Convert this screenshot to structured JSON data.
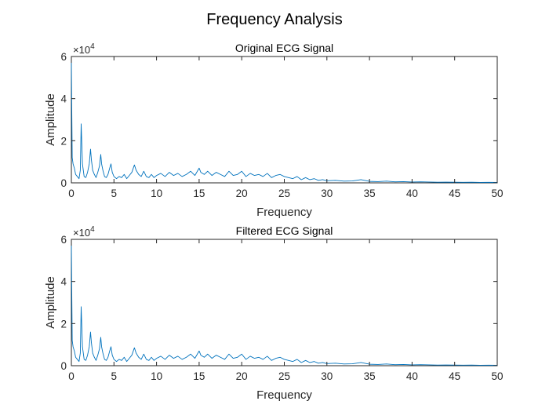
{
  "figure": {
    "title": "Frequency Analysis"
  },
  "colors": {
    "series": "#0072bd",
    "axis": "#262626",
    "background": "#ffffff"
  },
  "chart_data": [
    {
      "type": "line",
      "title": "Original ECG Signal",
      "xlabel": "Frequency",
      "ylabel": "Amplitude",
      "xlim": [
        0,
        50
      ],
      "ylim": [
        0,
        60000
      ],
      "y_multiplier": "×10^4",
      "xticks": [
        0,
        5,
        10,
        15,
        20,
        25,
        30,
        35,
        40,
        45,
        50
      ],
      "yticks": [
        0,
        20000,
        40000,
        60000
      ],
      "ytick_labels": [
        "0",
        "2",
        "4",
        "6"
      ],
      "grid": false,
      "series": [
        {
          "x": [
            0,
            0.05,
            0.1,
            0.2,
            0.35,
            0.5,
            0.7,
            0.9,
            1.05,
            1.15,
            1.3,
            1.5,
            1.7,
            1.9,
            2.1,
            2.25,
            2.35,
            2.5,
            2.7,
            2.9,
            3.1,
            3.3,
            3.45,
            3.55,
            3.7,
            3.9,
            4.1,
            4.3,
            4.5,
            4.65,
            4.8,
            5.0,
            5.3,
            5.6,
            5.9,
            6.2,
            6.5,
            6.8,
            7.1,
            7.4,
            7.6,
            7.9,
            8.2,
            8.5,
            8.8,
            9.1,
            9.4,
            9.7,
            10.0,
            10.5,
            11.0,
            11.5,
            12.0,
            12.5,
            13.0,
            13.5,
            14.0,
            14.5,
            15.0,
            15.2,
            15.6,
            16.0,
            16.5,
            17.0,
            17.5,
            18.0,
            18.5,
            19.0,
            19.5,
            20.0,
            20.5,
            21.0,
            21.5,
            22.0,
            22.5,
            23.0,
            23.5,
            24.0,
            24.5,
            25.0,
            25.5,
            26.0,
            26.5,
            27.0,
            27.5,
            28.0,
            28.5,
            29.0,
            29.5,
            30.0,
            31.0,
            32.0,
            33.0,
            34.0,
            35.0,
            36.0,
            37.0,
            38.0,
            39.0,
            40.0,
            41.0,
            42.0,
            43.0,
            44.0,
            45.0,
            46.0,
            47.0,
            48.0,
            49.0,
            50.0
          ],
          "y": [
            57000,
            34000,
            12000,
            9000,
            7000,
            4000,
            3000,
            2000,
            6000,
            28000,
            9000,
            3000,
            2500,
            5000,
            9000,
            16000,
            11000,
            6000,
            4000,
            2500,
            5000,
            8000,
            13500,
            9000,
            6000,
            3000,
            2500,
            4000,
            7000,
            9000,
            5000,
            3000,
            2000,
            3000,
            2500,
            4000,
            2000,
            3500,
            5000,
            8500,
            6000,
            4000,
            3000,
            5500,
            3000,
            2500,
            4000,
            2500,
            3500,
            4500,
            3000,
            5000,
            3500,
            4500,
            3000,
            4000,
            5500,
            3500,
            7000,
            5000,
            4000,
            5500,
            3500,
            5000,
            4000,
            3000,
            5500,
            3500,
            4000,
            5500,
            3000,
            4500,
            3500,
            4000,
            3000,
            4500,
            2500,
            3500,
            4000,
            3000,
            2500,
            2000,
            3000,
            1500,
            2500,
            1500,
            2000,
            1200,
            1500,
            1000,
            1200,
            800,
            900,
            1500,
            700,
            600,
            800,
            500,
            600,
            400,
            500,
            400,
            300,
            350,
            300,
            250,
            300,
            200,
            250,
            200
          ]
        }
      ]
    },
    {
      "type": "line",
      "title": "Filtered ECG Signal",
      "xlabel": "Frequency",
      "ylabel": "Amplitude",
      "xlim": [
        0,
        50
      ],
      "ylim": [
        0,
        60000
      ],
      "y_multiplier": "×10^4",
      "xticks": [
        0,
        5,
        10,
        15,
        20,
        25,
        30,
        35,
        40,
        45,
        50
      ],
      "yticks": [
        0,
        20000,
        40000,
        60000
      ],
      "ytick_labels": [
        "0",
        "2",
        "4",
        "6"
      ],
      "grid": false,
      "series": [
        {
          "x": [
            0,
            0.05,
            0.1,
            0.2,
            0.35,
            0.5,
            0.7,
            0.9,
            1.05,
            1.15,
            1.3,
            1.5,
            1.7,
            1.9,
            2.1,
            2.25,
            2.35,
            2.5,
            2.7,
            2.9,
            3.1,
            3.3,
            3.45,
            3.55,
            3.7,
            3.9,
            4.1,
            4.3,
            4.5,
            4.65,
            4.8,
            5.0,
            5.3,
            5.6,
            5.9,
            6.2,
            6.5,
            6.8,
            7.1,
            7.4,
            7.6,
            7.9,
            8.2,
            8.5,
            8.8,
            9.1,
            9.4,
            9.7,
            10.0,
            10.5,
            11.0,
            11.5,
            12.0,
            12.5,
            13.0,
            13.5,
            14.0,
            14.5,
            15.0,
            15.2,
            15.6,
            16.0,
            16.5,
            17.0,
            17.5,
            18.0,
            18.5,
            19.0,
            19.5,
            20.0,
            20.5,
            21.0,
            21.5,
            22.0,
            22.5,
            23.0,
            23.5,
            24.0,
            24.5,
            25.0,
            25.5,
            26.0,
            26.5,
            27.0,
            27.5,
            28.0,
            28.5,
            29.0,
            29.5,
            30.0,
            31.0,
            32.0,
            33.0,
            34.0,
            35.0,
            36.0,
            37.0,
            38.0,
            39.0,
            40.0,
            41.0,
            42.0,
            43.0,
            44.0,
            45.0,
            46.0,
            47.0,
            48.0,
            49.0,
            50.0
          ],
          "y": [
            57000,
            34000,
            12000,
            9000,
            7000,
            4000,
            3000,
            2000,
            6000,
            28000,
            9000,
            3000,
            2500,
            5000,
            9000,
            16000,
            11000,
            6000,
            4000,
            2500,
            5000,
            8000,
            13500,
            9000,
            6000,
            3000,
            2500,
            4000,
            7000,
            9000,
            5000,
            3000,
            2000,
            3000,
            2500,
            4000,
            2000,
            3500,
            5000,
            8500,
            6000,
            4000,
            3000,
            5500,
            3000,
            2500,
            4000,
            2500,
            3500,
            4500,
            3000,
            5000,
            3500,
            4500,
            3000,
            4000,
            5500,
            3500,
            7000,
            5000,
            4000,
            5500,
            3500,
            5000,
            4000,
            3000,
            5500,
            3500,
            4000,
            5500,
            3000,
            4500,
            3500,
            4000,
            3000,
            4500,
            2500,
            3500,
            4000,
            3000,
            2500,
            2000,
            3000,
            1500,
            2500,
            1500,
            2000,
            1200,
            1500,
            1000,
            1200,
            800,
            900,
            1500,
            700,
            600,
            800,
            500,
            600,
            400,
            500,
            400,
            300,
            350,
            300,
            250,
            300,
            200,
            250,
            200
          ]
        }
      ]
    }
  ]
}
